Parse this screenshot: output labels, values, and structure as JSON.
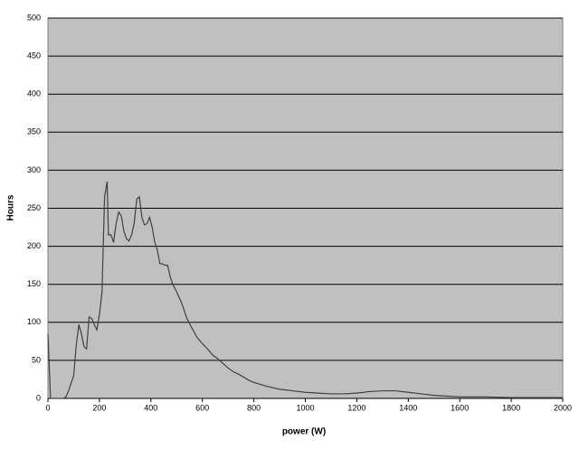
{
  "chart_data": {
    "type": "line",
    "x_label": "power (W)",
    "y_label": "Hours",
    "x": [
      0,
      10,
      20,
      40,
      60,
      70,
      80,
      90,
      100,
      110,
      120,
      130,
      140,
      150,
      160,
      170,
      180,
      190,
      200,
      210,
      220,
      230,
      235,
      245,
      255,
      265,
      275,
      285,
      295,
      305,
      315,
      325,
      335,
      345,
      355,
      365,
      375,
      385,
      395,
      405,
      415,
      425,
      435,
      445,
      455,
      465,
      475,
      485,
      500,
      520,
      540,
      560,
      580,
      600,
      620,
      640,
      660,
      680,
      700,
      720,
      740,
      760,
      780,
      800,
      850,
      900,
      950,
      1000,
      1050,
      1100,
      1150,
      1200,
      1250,
      1300,
      1350,
      1400,
      1450,
      1500,
      1550,
      1600,
      1700,
      1800,
      1900,
      2000
    ],
    "series": [
      {
        "name": "Hours",
        "color": "#404040",
        "values": [
          85,
          0,
          0,
          0,
          0,
          2,
          10,
          20,
          30,
          70,
          97,
          85,
          68,
          65,
          107,
          105,
          97,
          90,
          110,
          140,
          265,
          285,
          215,
          215,
          205,
          230,
          245,
          240,
          220,
          210,
          207,
          215,
          230,
          262,
          265,
          238,
          228,
          230,
          238,
          225,
          205,
          195,
          177,
          177,
          175,
          175,
          160,
          150,
          140,
          125,
          105,
          92,
          80,
          72,
          65,
          57,
          52,
          46,
          40,
          35,
          32,
          28,
          24,
          21,
          16,
          12,
          10,
          8,
          7,
          6,
          6,
          7,
          9,
          10,
          10,
          8,
          6,
          4,
          3,
          2,
          2,
          1,
          1,
          1
        ]
      }
    ],
    "xlim": [
      0,
      2000
    ],
    "ylim": [
      0,
      500
    ],
    "xticks": [
      0,
      200,
      400,
      600,
      800,
      1000,
      1200,
      1400,
      1600,
      1800,
      2000
    ],
    "yticks": [
      0,
      50,
      100,
      150,
      200,
      250,
      300,
      350,
      400,
      450,
      500
    ],
    "grid": true,
    "background": "#c0c0c0"
  }
}
